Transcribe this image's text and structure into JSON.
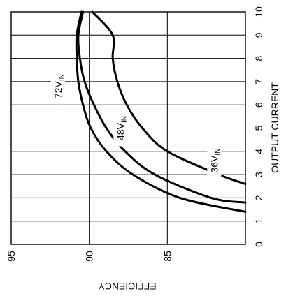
{
  "chart_data": {
    "type": "line",
    "orientation": "rotated-90",
    "xlabel": "OUTPUT CURRENT",
    "ylabel": "EFFICIENCY",
    "xlim": [
      0,
      10
    ],
    "ylim": [
      80,
      95
    ],
    "x_ticks": [
      0,
      1,
      2,
      3,
      4,
      5,
      6,
      7,
      8,
      9,
      10
    ],
    "y_ticks": [
      95,
      90,
      85
    ],
    "grid": true,
    "series": [
      {
        "name": "36V_IN",
        "label_main": "36V",
        "label_sub": "IN",
        "x": [
          1.4,
          2.0,
          3.0,
          4.0,
          5.0,
          6.0,
          7.0,
          8.0,
          9.0,
          10.0
        ],
        "y": [
          80.0,
          84.2,
          87.2,
          88.9,
          89.9,
          90.4,
          90.7,
          90.8,
          90.8,
          90.5
        ]
      },
      {
        "name": "48V_IN",
        "label_main": "48V",
        "label_sub": "IN",
        "x": [
          1.8,
          2.0,
          3.0,
          4.0,
          5.0,
          6.0,
          7.0,
          8.0,
          9.0,
          10.0
        ],
        "y": [
          80.0,
          82.2,
          85.8,
          87.7,
          88.9,
          89.7,
          90.3,
          90.6,
          90.7,
          90.4
        ]
      },
      {
        "name": "72V_IN",
        "label_main": "72V",
        "label_sub": "IN",
        "x": [
          2.6,
          3.0,
          4.0,
          5.0,
          6.0,
          7.0,
          8.0,
          9.0,
          10.0
        ],
        "y": [
          80.0,
          81.7,
          85.0,
          86.6,
          87.6,
          88.2,
          88.5,
          88.5,
          89.8
        ]
      }
    ]
  }
}
